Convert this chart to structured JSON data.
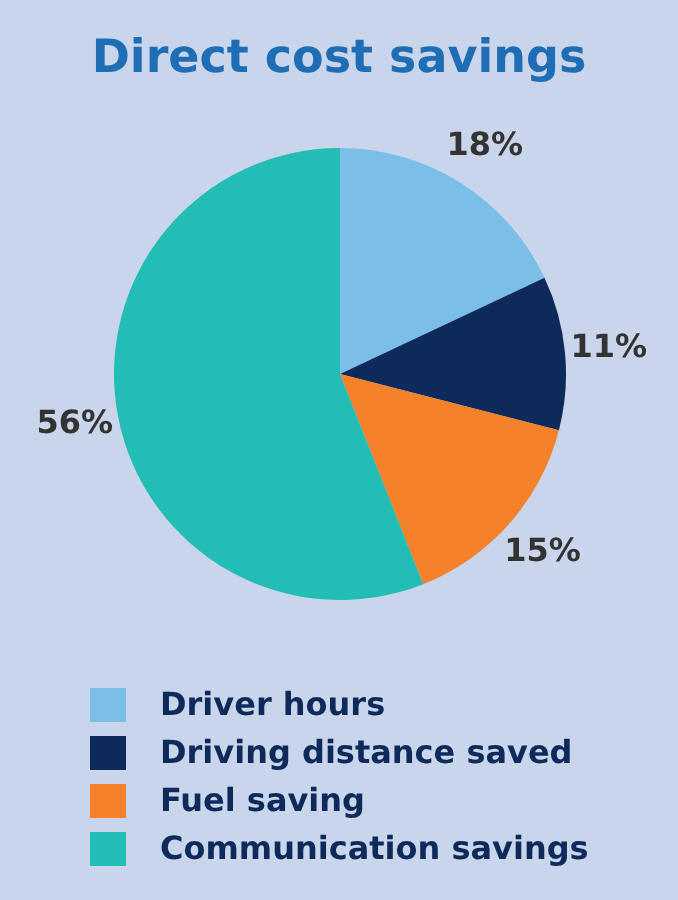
{
  "chart_data": {
    "type": "pie",
    "title": "Direct cost savings",
    "categories": [
      "Driver hours",
      "Driving distance saved",
      "Fuel saving",
      "Communication savings"
    ],
    "values": [
      18,
      11,
      15,
      56
    ],
    "value_labels": [
      "18%",
      "11%",
      "15%",
      "56%"
    ],
    "colors": [
      "#7bbfe8",
      "#0d2a5a",
      "#f5812a",
      "#22bdb5"
    ],
    "legend": "bottom"
  }
}
